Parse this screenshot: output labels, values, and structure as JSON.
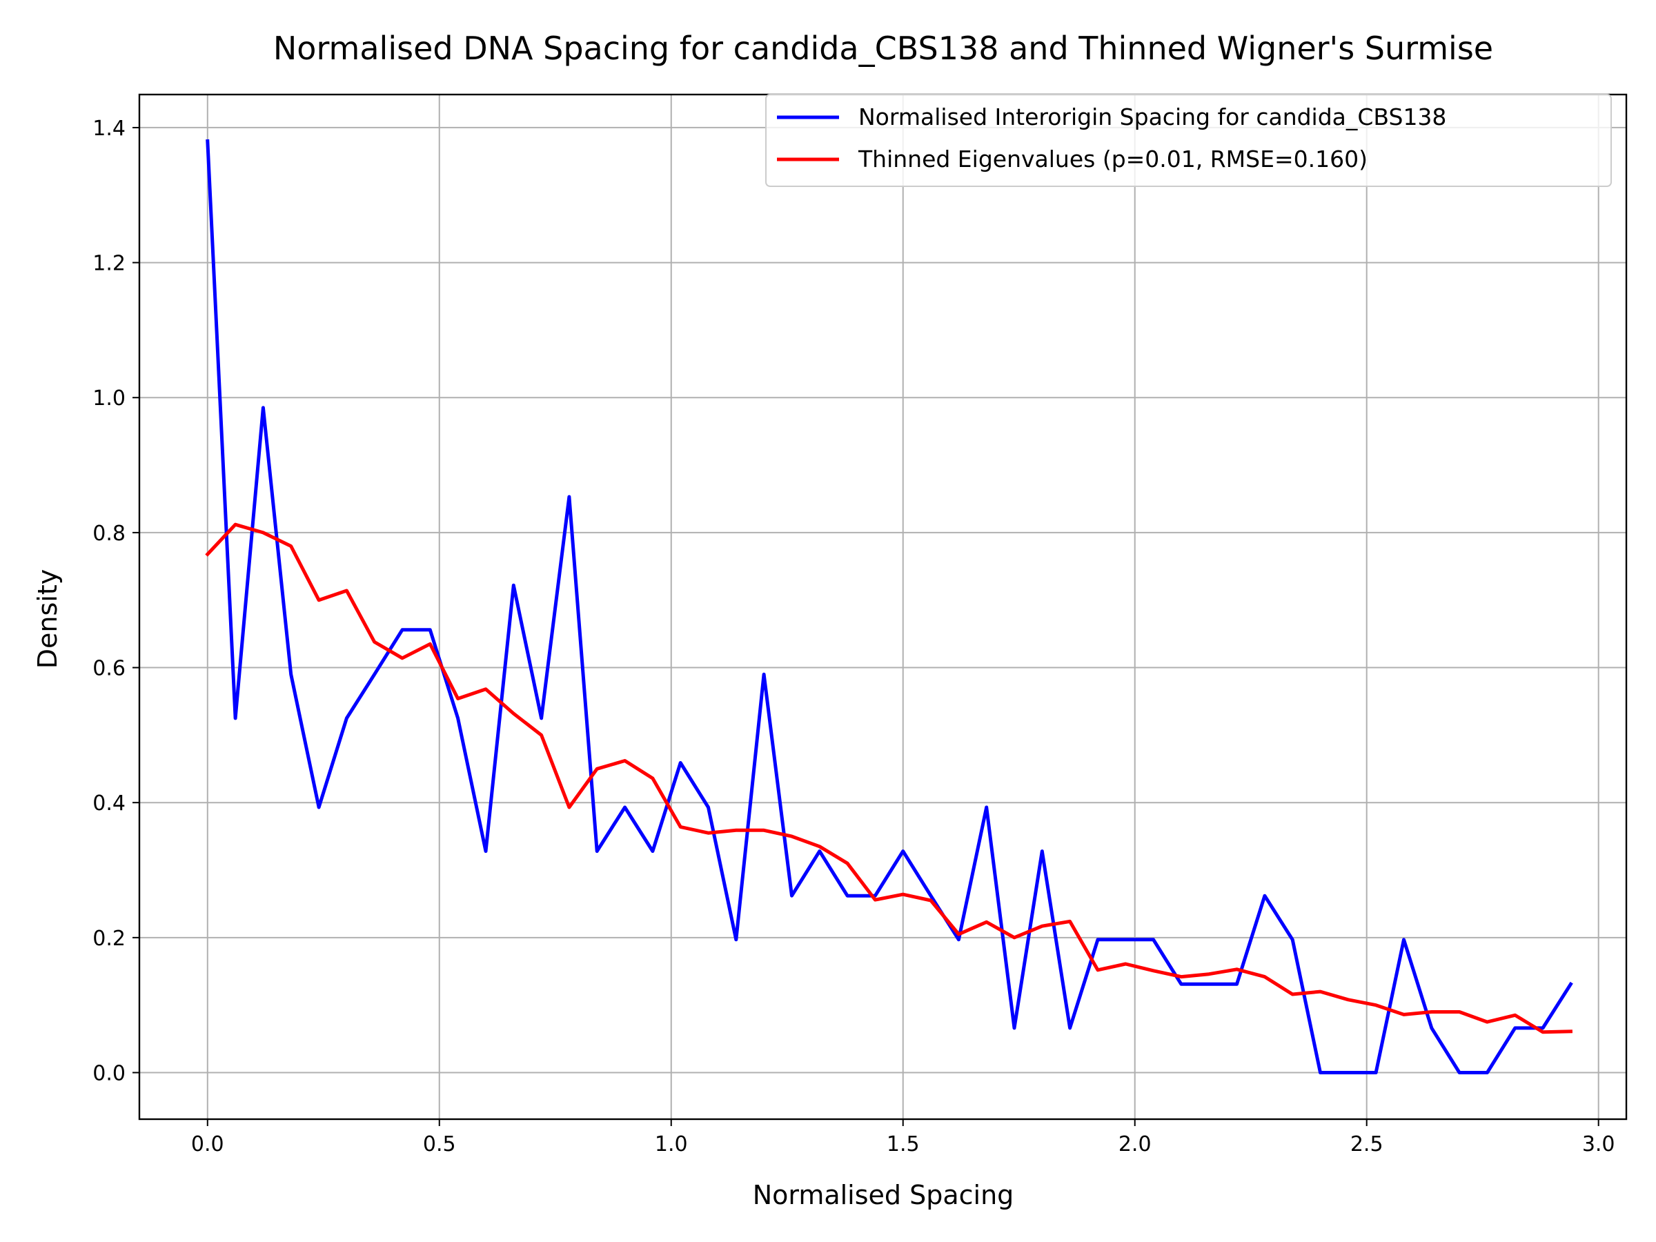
{
  "chart_data": {
    "type": "line",
    "title": "Normalised DNA Spacing for candida_CBS138 and Thinned Wigner's Surmise",
    "xlabel": "Normalised Spacing",
    "ylabel": "Density",
    "xlim": [
      -0.147,
      3.06
    ],
    "ylim": [
      -0.069,
      1.449
    ],
    "xticks": [
      0.0,
      0.5,
      1.0,
      1.5,
      2.0,
      2.5,
      3.0
    ],
    "xtick_labels": [
      "0.0",
      "0.5",
      "1.0",
      "1.5",
      "2.0",
      "2.5",
      "3.0"
    ],
    "yticks": [
      0.0,
      0.2,
      0.4,
      0.6,
      0.8,
      1.0,
      1.2,
      1.4
    ],
    "ytick_labels": [
      "0.0",
      "0.2",
      "0.4",
      "0.6",
      "0.8",
      "1.0",
      "1.2",
      "1.4"
    ],
    "grid": true,
    "legend_position": "top-right",
    "x": [
      0.0,
      0.06,
      0.12,
      0.18,
      0.24,
      0.3,
      0.36,
      0.42,
      0.48,
      0.54,
      0.6,
      0.66,
      0.72,
      0.78,
      0.84,
      0.9,
      0.96,
      1.02,
      1.08,
      1.14,
      1.2,
      1.26,
      1.32,
      1.38,
      1.44,
      1.5,
      1.56,
      1.62,
      1.68,
      1.74,
      1.8,
      1.86,
      1.92,
      1.98,
      2.04,
      2.1,
      2.16,
      2.22,
      2.28,
      2.34,
      2.4,
      2.46,
      2.52,
      2.58,
      2.64,
      2.7,
      2.76,
      2.82,
      2.88,
      2.94
    ],
    "series": [
      {
        "name": "Normalised Interorigin Spacing for candida_CBS138",
        "color": "#0000ff",
        "values": [
          1.38,
          0.525,
          0.985,
          0.59,
          0.393,
          0.525,
          0.59,
          0.656,
          0.656,
          0.525,
          0.328,
          0.722,
          0.525,
          0.853,
          0.328,
          0.393,
          0.328,
          0.459,
          0.393,
          0.197,
          0.59,
          0.262,
          0.328,
          0.262,
          0.262,
          0.328,
          0.262,
          0.197,
          0.393,
          0.066,
          0.328,
          0.066,
          0.197,
          0.197,
          0.197,
          0.131,
          0.131,
          0.131,
          0.262,
          0.197,
          0.0,
          0.0,
          0.0,
          0.197,
          0.066,
          0.0,
          0.0,
          0.066,
          0.066,
          0.131
        ]
      },
      {
        "name": "Thinned Eigenvalues (p=0.01, RMSE=0.160)",
        "color": "#ff0000",
        "values": [
          0.768,
          0.812,
          0.8,
          0.78,
          0.7,
          0.714,
          0.638,
          0.614,
          0.635,
          0.554,
          0.568,
          0.532,
          0.5,
          0.393,
          0.45,
          0.462,
          0.436,
          0.364,
          0.355,
          0.359,
          0.359,
          0.35,
          0.335,
          0.31,
          0.256,
          0.264,
          0.255,
          0.205,
          0.223,
          0.2,
          0.217,
          0.224,
          0.152,
          0.161,
          0.151,
          0.142,
          0.146,
          0.153,
          0.142,
          0.116,
          0.12,
          0.108,
          0.1,
          0.086,
          0.09,
          0.09,
          0.075,
          0.085,
          0.06,
          0.061
        ]
      }
    ]
  }
}
